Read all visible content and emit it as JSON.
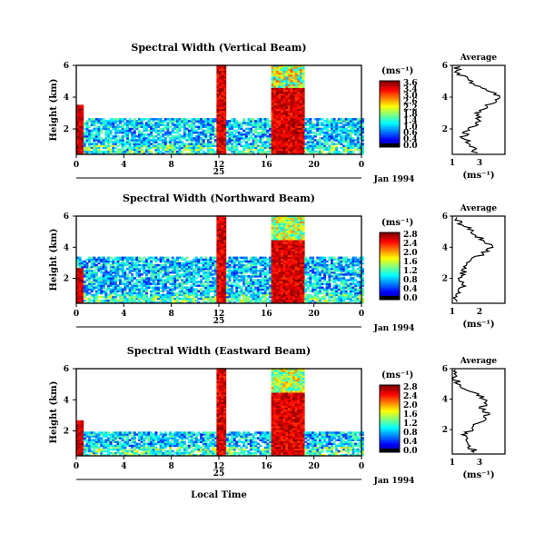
{
  "chart_data": [
    {
      "type": "heatmap",
      "title": "Spectral Width (Vertical Beam)",
      "ylabel": "Height (km)",
      "y_ticks": [
        "6",
        "4",
        "2"
      ],
      "ylim": [
        0.4,
        6
      ],
      "x_ticks": [
        "0",
        "4",
        "8",
        "12",
        "16",
        "20",
        "0"
      ],
      "xlim": [
        0,
        24
      ],
      "day_label": "25",
      "date_label": "Jan 1994",
      "colorbar": {
        "unit_label": "(ms⁻¹)",
        "ticks": [
          "3.6",
          "3.4",
          "3.0",
          "2.6",
          "2.2",
          "1.8",
          "1.4",
          "1.0",
          "0.6",
          "0.4",
          "0.0"
        ],
        "range": [
          0,
          3.6
        ]
      },
      "average": {
        "title": "Average",
        "x_ticks": [
          "1",
          "3"
        ],
        "xlabel": "(ms⁻¹)",
        "y_ticks": [
          "6",
          "4",
          "2"
        ],
        "profile_width": [
          [
            0.5,
            2.0
          ],
          [
            1.0,
            1.8
          ],
          [
            1.5,
            1.5
          ],
          [
            2.0,
            1.7
          ],
          [
            2.5,
            2.2
          ],
          [
            3.0,
            2.0
          ],
          [
            3.5,
            2.6
          ],
          [
            4.0,
            3.2
          ],
          [
            4.5,
            2.4
          ],
          [
            5.0,
            1.8
          ],
          [
            5.5,
            1.3
          ],
          [
            6.0,
            1.2
          ]
        ]
      }
    },
    {
      "type": "heatmap",
      "title": "Spectral Width (Northward Beam)",
      "ylabel": "Height (km)",
      "y_ticks": [
        "6",
        "4",
        "2"
      ],
      "ylim": [
        0.4,
        6
      ],
      "x_ticks": [
        "0",
        "4",
        "8",
        "12",
        "16",
        "20",
        "0"
      ],
      "xlim": [
        0,
        24
      ],
      "day_label": "25",
      "date_label": "Jan 1994",
      "colorbar": {
        "unit_label": "(ms⁻¹)",
        "ticks": [
          "2.8",
          "2.4",
          "2.0",
          "1.6",
          "1.2",
          "0.8",
          "0.4",
          "0.0"
        ],
        "range": [
          0,
          2.8
        ]
      },
      "average": {
        "title": "Average",
        "x_ticks": [
          "1",
          "2"
        ],
        "xlabel": "(ms⁻¹)",
        "y_ticks": [
          "6",
          "4",
          "2"
        ],
        "profile_width": [
          [
            0.5,
            1.1
          ],
          [
            1.0,
            1.2
          ],
          [
            1.5,
            1.4
          ],
          [
            2.0,
            1.4
          ],
          [
            2.5,
            1.5
          ],
          [
            3.0,
            1.7
          ],
          [
            3.5,
            2.2
          ],
          [
            4.0,
            2.7
          ],
          [
            4.5,
            2.3
          ],
          [
            5.0,
            1.9
          ],
          [
            5.5,
            1.4
          ],
          [
            6.0,
            1.1
          ]
        ]
      }
    },
    {
      "type": "heatmap",
      "title": "Spectral Width (Eastward Beam)",
      "ylabel": "Height (km)",
      "y_ticks": [
        "6",
        "4",
        "2"
      ],
      "ylim": [
        0.4,
        6
      ],
      "x_ticks": [
        "0",
        "4",
        "8",
        "12",
        "16",
        "20",
        "0"
      ],
      "xlim": [
        0,
        24
      ],
      "day_label": "25",
      "date_label": "Jan 1994",
      "xlabel": "Local Time",
      "colorbar": {
        "unit_label": "(ms⁻¹)",
        "ticks": [
          "2.8",
          "2.4",
          "2.0",
          "1.6",
          "1.2",
          "0.8",
          "0.4",
          "0.0"
        ],
        "range": [
          0,
          2.8
        ]
      },
      "average": {
        "title": "Average",
        "x_ticks": [
          "1",
          "3"
        ],
        "xlabel": "(ms⁻¹)",
        "y_ticks": [
          "6",
          "4",
          "2"
        ],
        "profile_width": [
          [
            0.5,
            2.0
          ],
          [
            1.0,
            1.7
          ],
          [
            1.5,
            1.5
          ],
          [
            2.0,
            1.8
          ],
          [
            2.5,
            2.2
          ],
          [
            3.0,
            2.6
          ],
          [
            3.5,
            2.3
          ],
          [
            4.0,
            2.5
          ],
          [
            4.5,
            1.8
          ],
          [
            5.0,
            1.3
          ],
          [
            5.5,
            1.1
          ],
          [
            6.0,
            1.0
          ]
        ]
      }
    }
  ]
}
